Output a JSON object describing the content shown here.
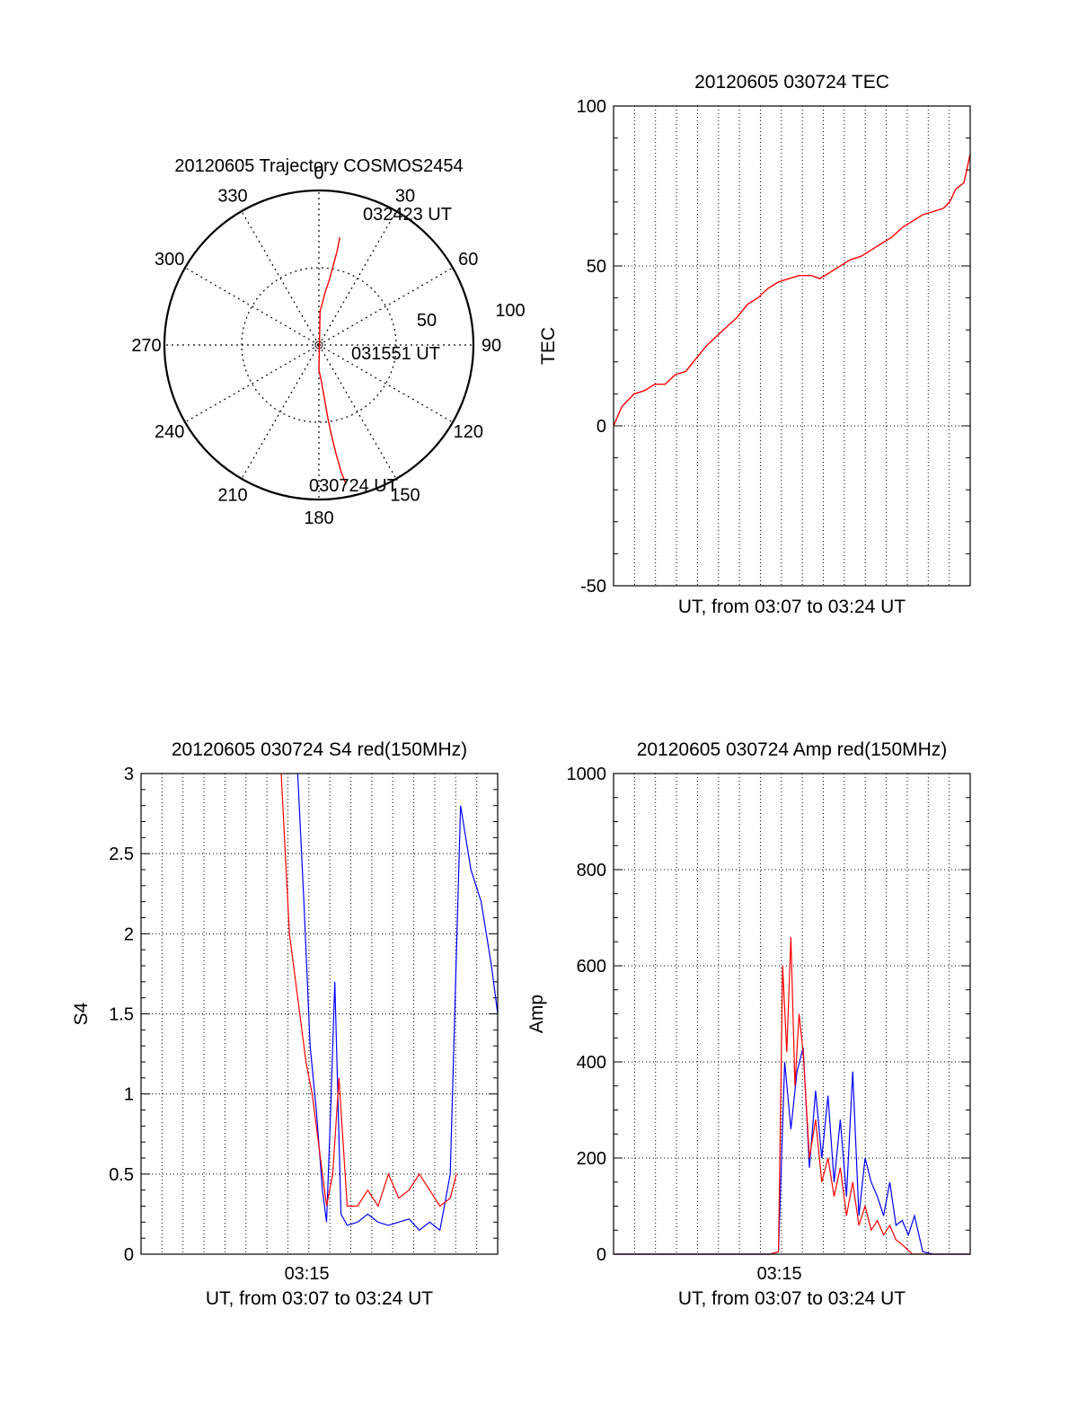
{
  "chart_data": [
    {
      "type": "polar",
      "title": "20120605 Trajectory COSMOS2454",
      "azimuth_labels": [
        "0",
        "30",
        "60",
        "90",
        "120",
        "150",
        "180",
        "210",
        "240",
        "270",
        "300",
        "330"
      ],
      "radius_labels": [
        "50",
        "100"
      ],
      "rlim": [
        0,
        100
      ],
      "grid": true,
      "annotations": [
        "032423 UT",
        "031551 UT",
        "030724 UT"
      ],
      "series": [
        {
          "color": "#ff0000",
          "points": [
            [
              11,
              71
            ],
            [
              11,
              62
            ],
            [
              10,
              50
            ],
            [
              9,
              42
            ],
            [
              7,
              35
            ],
            [
              5,
              28
            ],
            [
              2,
              22
            ],
            [
              180,
              16
            ],
            [
              176,
              24
            ],
            [
              174,
              36
            ],
            [
              173,
              48
            ],
            [
              172,
              60
            ],
            [
              171,
              72
            ],
            [
              170,
              84
            ],
            [
              169,
              92
            ]
          ]
        }
      ]
    },
    {
      "type": "line",
      "title": "20120605 030724 TEC",
      "xlabel": "UT, from 03:07 to 03:24 UT",
      "ylabel": "TEC",
      "ylim": [
        -50,
        100
      ],
      "yticks": [
        "100",
        "50",
        "0",
        "-50"
      ],
      "xlim": [
        0,
        17.3
      ],
      "grid": true,
      "series": [
        {
          "color": "#ff0000",
          "x": [
            0,
            0.4,
            1,
            1.5,
            2,
            2.5,
            3,
            3.5,
            4,
            4.5,
            5,
            5.5,
            6,
            6.5,
            7,
            7.5,
            8,
            8.5,
            9,
            9.3,
            9.6,
            10,
            10.5,
            11,
            11.5,
            12,
            12.5,
            13,
            13.5,
            14,
            14.5,
            15,
            15.5,
            16,
            16.3,
            16.6,
            17,
            17.3
          ],
          "y": [
            0,
            6,
            10,
            11,
            13,
            13,
            16,
            17,
            21,
            25,
            28,
            31,
            34,
            38,
            40,
            43,
            45,
            46,
            47,
            47,
            47,
            46,
            48,
            50,
            52,
            53,
            55,
            57,
            59,
            62,
            64,
            66,
            67,
            68,
            70,
            74,
            76,
            85
          ]
        }
      ]
    },
    {
      "type": "line",
      "title": "20120605 030724 S4 red(150MHz)",
      "xlabel": "UT, from 03:07 to 03:24 UT",
      "ylabel": "S4",
      "ylim": [
        0,
        3
      ],
      "yticks": [
        "3",
        "2.5",
        "2",
        "1.5",
        "1",
        "0.5",
        "0"
      ],
      "xticks": [
        "03:15"
      ],
      "xlim": [
        0,
        17.3
      ],
      "grid": true,
      "series": [
        {
          "color": "#0000ff",
          "x": [
            7.6,
            7.9,
            8.2,
            8.5,
            8.8,
            9,
            9.2,
            9.4,
            9.7,
            10,
            10.5,
            11,
            11.5,
            12,
            12.5,
            13,
            13.5,
            14,
            14.5,
            15,
            15.5,
            16,
            16.5,
            17,
            17.3
          ],
          "y": [
            3,
            2.2,
            1.3,
            0.9,
            0.4,
            0.2,
            0.9,
            1.7,
            0.25,
            0.18,
            0.2,
            0.25,
            0.2,
            0.18,
            0.2,
            0.22,
            0.15,
            0.2,
            0.15,
            0.5,
            2.8,
            2.4,
            2.2,
            1.8,
            1.5
          ]
        },
        {
          "color": "#ff0000",
          "x": [
            6.8,
            7,
            7.2,
            7.5,
            7.8,
            8,
            8.3,
            8.6,
            9,
            9.3,
            9.6,
            10,
            10.5,
            11,
            11.5,
            12,
            12.5,
            13,
            13.5,
            14,
            14.5,
            15,
            15.3
          ],
          "y": [
            3,
            2.5,
            2,
            1.7,
            1.4,
            1.2,
            1.0,
            0.7,
            0.3,
            0.5,
            1.1,
            0.3,
            0.3,
            0.4,
            0.3,
            0.5,
            0.35,
            0.4,
            0.5,
            0.4,
            0.3,
            0.35,
            0.5
          ]
        }
      ]
    },
    {
      "type": "line",
      "title": "20120605 030724 Amp red(150MHz)",
      "xlabel": "UT, from 03:07 to 03:24 UT",
      "ylabel": "Amp",
      "ylim": [
        0,
        1000
      ],
      "yticks": [
        "1000",
        "800",
        "600",
        "400",
        "200",
        "0"
      ],
      "xticks": [
        "03:15"
      ],
      "xlim": [
        0,
        17.3
      ],
      "grid": true,
      "series": [
        {
          "color": "#0000ff",
          "x": [
            0,
            7.6,
            8,
            8.3,
            8.6,
            8.9,
            9.2,
            9.5,
            9.8,
            10.1,
            10.4,
            10.7,
            11,
            11.3,
            11.6,
            11.9,
            12.2,
            12.5,
            12.8,
            13.1,
            13.4,
            13.7,
            14,
            14.3,
            14.6,
            15,
            15.5,
            17.3
          ],
          "y": [
            0,
            0,
            5,
            400,
            260,
            380,
            430,
            180,
            340,
            200,
            330,
            150,
            280,
            120,
            380,
            80,
            200,
            150,
            120,
            80,
            150,
            60,
            70,
            40,
            80,
            5,
            0,
            0
          ]
        },
        {
          "color": "#ff0000",
          "x": [
            0,
            7.6,
            8,
            8.2,
            8.4,
            8.6,
            8.8,
            9,
            9.2,
            9.5,
            9.8,
            10.1,
            10.4,
            10.7,
            11,
            11.3,
            11.6,
            11.9,
            12.2,
            12.5,
            12.8,
            13.1,
            13.4,
            13.7,
            14,
            14.5,
            17.3
          ],
          "y": [
            0,
            0,
            5,
            600,
            420,
            660,
            350,
            500,
            420,
            200,
            280,
            150,
            200,
            120,
            180,
            80,
            150,
            60,
            100,
            50,
            70,
            40,
            60,
            30,
            20,
            0,
            0
          ]
        }
      ]
    }
  ]
}
